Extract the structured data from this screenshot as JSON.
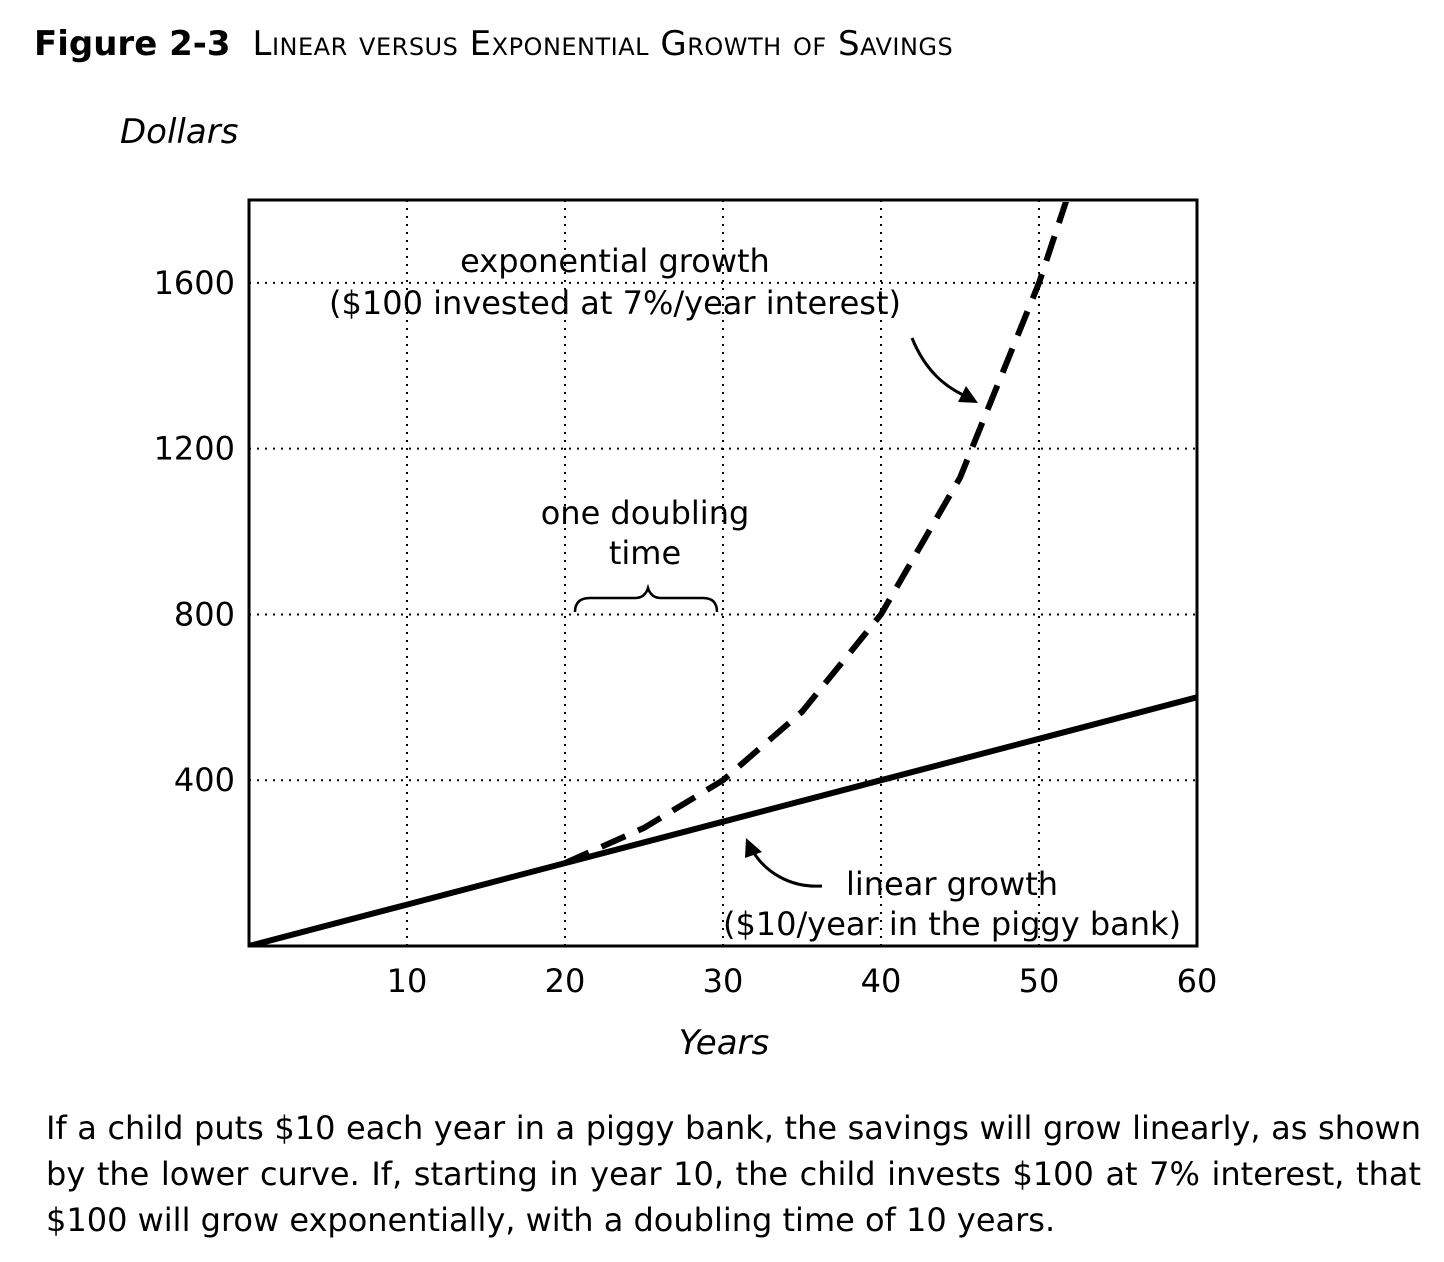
{
  "figure": {
    "number": "Figure 2-3",
    "title": "Linear versus Exponential Growth of Savings"
  },
  "chart_data": {
    "type": "line",
    "xlabel": "Years",
    "ylabel": "Dollars",
    "xlim": [
      0,
      60
    ],
    "ylim": [
      0,
      1800
    ],
    "xticks": [
      10,
      20,
      30,
      40,
      50,
      60
    ],
    "yticks": [
      400,
      800,
      1200,
      1600
    ],
    "grid": true,
    "series": [
      {
        "name": "linear growth ($10/year in the piggy bank)",
        "style": "solid",
        "x": [
          0,
          10,
          20,
          30,
          40,
          50,
          60
        ],
        "y": [
          0,
          100,
          200,
          300,
          400,
          500,
          600
        ]
      },
      {
        "name": "exponential growth ($100 invested at 7%/year interest)",
        "style": "dashed",
        "x": [
          20,
          25,
          30,
          35,
          40,
          45,
          50,
          52
        ],
        "y": [
          200,
          285,
          400,
          565,
          800,
          1130,
          1600,
          1830
        ]
      }
    ],
    "annotations": {
      "exponential_label_line1": "exponential growth",
      "exponential_label_line2": "($100 invested at 7%/year interest)",
      "linear_label_line1": "linear growth",
      "linear_label_line2": "($10/year in the piggy bank)",
      "doubling_line1": "one doubling",
      "doubling_line2": "time"
    }
  },
  "caption": "If a child puts $10 each year in a piggy bank, the savings will grow linearly, as shown by the lower curve. If, starting in year 10, the child invests $100 at 7% interest, that $100 will grow exponentially, with a doubling time of 10 years."
}
